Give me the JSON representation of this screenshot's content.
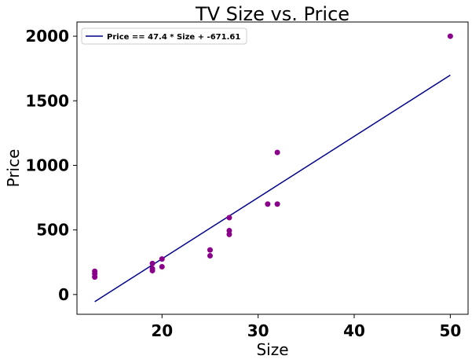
{
  "chart_data": {
    "type": "scatter",
    "title": "TV Size vs. Price",
    "xlabel": "Size",
    "ylabel": "Price",
    "xlim": [
      11.15,
      51.85
    ],
    "ylim": [
      -153,
      2110
    ],
    "xticks": [
      20,
      30,
      40,
      50
    ],
    "yticks": [
      0,
      500,
      1000,
      1500,
      2000
    ],
    "grid": false,
    "legend_placement": "top-left",
    "points": {
      "color": "#8B008B",
      "x": [
        13,
        13,
        13,
        19,
        19,
        19,
        20,
        20,
        25,
        25,
        27,
        27,
        27,
        31,
        32,
        32,
        50
      ],
      "y": [
        180,
        160,
        135,
        240,
        200,
        185,
        275,
        215,
        345,
        300,
        595,
        495,
        465,
        700,
        700,
        1100,
        2000
      ]
    },
    "fit_line": {
      "name": "Price == 47.4 * Size + -671.61",
      "color": "#00008B",
      "slope": 47.4,
      "intercept": -671.61,
      "x_range": [
        13,
        50
      ]
    }
  }
}
